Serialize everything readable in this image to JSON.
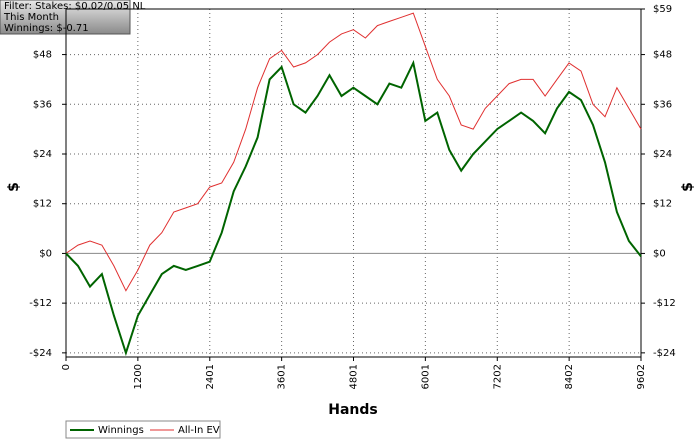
{
  "chart_data": {
    "type": "line",
    "annotations": [
      "Filter: Stakes: $0.02/0.05 NL",
      "This Month",
      "Winnings: $-0.71"
    ],
    "xlabel": "Hands",
    "ylabel": "$",
    "y2label": "$",
    "x": [
      0,
      200,
      400,
      600,
      800,
      1000,
      1200,
      1400,
      1600,
      1800,
      2000,
      2200,
      2400,
      2600,
      2800,
      3000,
      3200,
      3400,
      3600,
      3800,
      4000,
      4200,
      4400,
      4600,
      4800,
      5000,
      5200,
      5400,
      5600,
      5800,
      6000,
      6200,
      6400,
      6600,
      6800,
      7000,
      7200,
      7400,
      7600,
      7800,
      8000,
      8200,
      8400,
      8600,
      8800,
      9000,
      9200,
      9400,
      9602
    ],
    "series": [
      {
        "name": "Winnings",
        "color": "#006400",
        "values": [
          0,
          -3,
          -8,
          -5,
          -15,
          -24,
          -15,
          -10,
          -5,
          -3,
          -4,
          -3,
          -2,
          5,
          15,
          21,
          28,
          42,
          45,
          36,
          34,
          38,
          43,
          38,
          40,
          38,
          36,
          41,
          40,
          46,
          32,
          34,
          25,
          20,
          24,
          27,
          30,
          32,
          34,
          32,
          29,
          35,
          39,
          37,
          31,
          22,
          10,
          3,
          -0.71
        ]
      },
      {
        "name": "All-In EV",
        "color": "#e03030",
        "values": [
          0,
          2,
          3,
          2,
          -3,
          -9,
          -4,
          2,
          5,
          10,
          11,
          12,
          16,
          17,
          22,
          30,
          40,
          47,
          49,
          45,
          46,
          48,
          51,
          53,
          54,
          52,
          55,
          56,
          57,
          58,
          50,
          42,
          38,
          31,
          30,
          35,
          38,
          41,
          42,
          42,
          38,
          42,
          46,
          44,
          36,
          33,
          40,
          35,
          30
        ]
      }
    ],
    "xlim": [
      0,
      9602
    ],
    "xticks": [
      0,
      1200,
      2401,
      3601,
      4801,
      6001,
      7202,
      8402,
      9602
    ],
    "ylim": [
      -25,
      59
    ],
    "yticks": [
      {
        "value": 48,
        "label": "$48"
      },
      {
        "value": 36,
        "label": "$36"
      },
      {
        "value": 24,
        "label": "$24"
      },
      {
        "value": 12,
        "label": "$12"
      },
      {
        "value": 0,
        "label": "$0"
      },
      {
        "value": -12,
        "label": "-$12"
      },
      {
        "value": -24,
        "label": "-$24"
      }
    ],
    "y2lim": [
      -25,
      59
    ],
    "y2ticks": [
      {
        "value": 59,
        "label": "$59"
      },
      {
        "value": 48,
        "label": "$48"
      },
      {
        "value": 36,
        "label": "$36"
      },
      {
        "value": 24,
        "label": "$24"
      },
      {
        "value": 12,
        "label": "$12"
      },
      {
        "value": 0,
        "label": "$0"
      },
      {
        "value": -12,
        "label": "-$12"
      },
      {
        "value": -24,
        "label": "-$24"
      }
    ],
    "grid": true,
    "legend": "bottom-left"
  }
}
